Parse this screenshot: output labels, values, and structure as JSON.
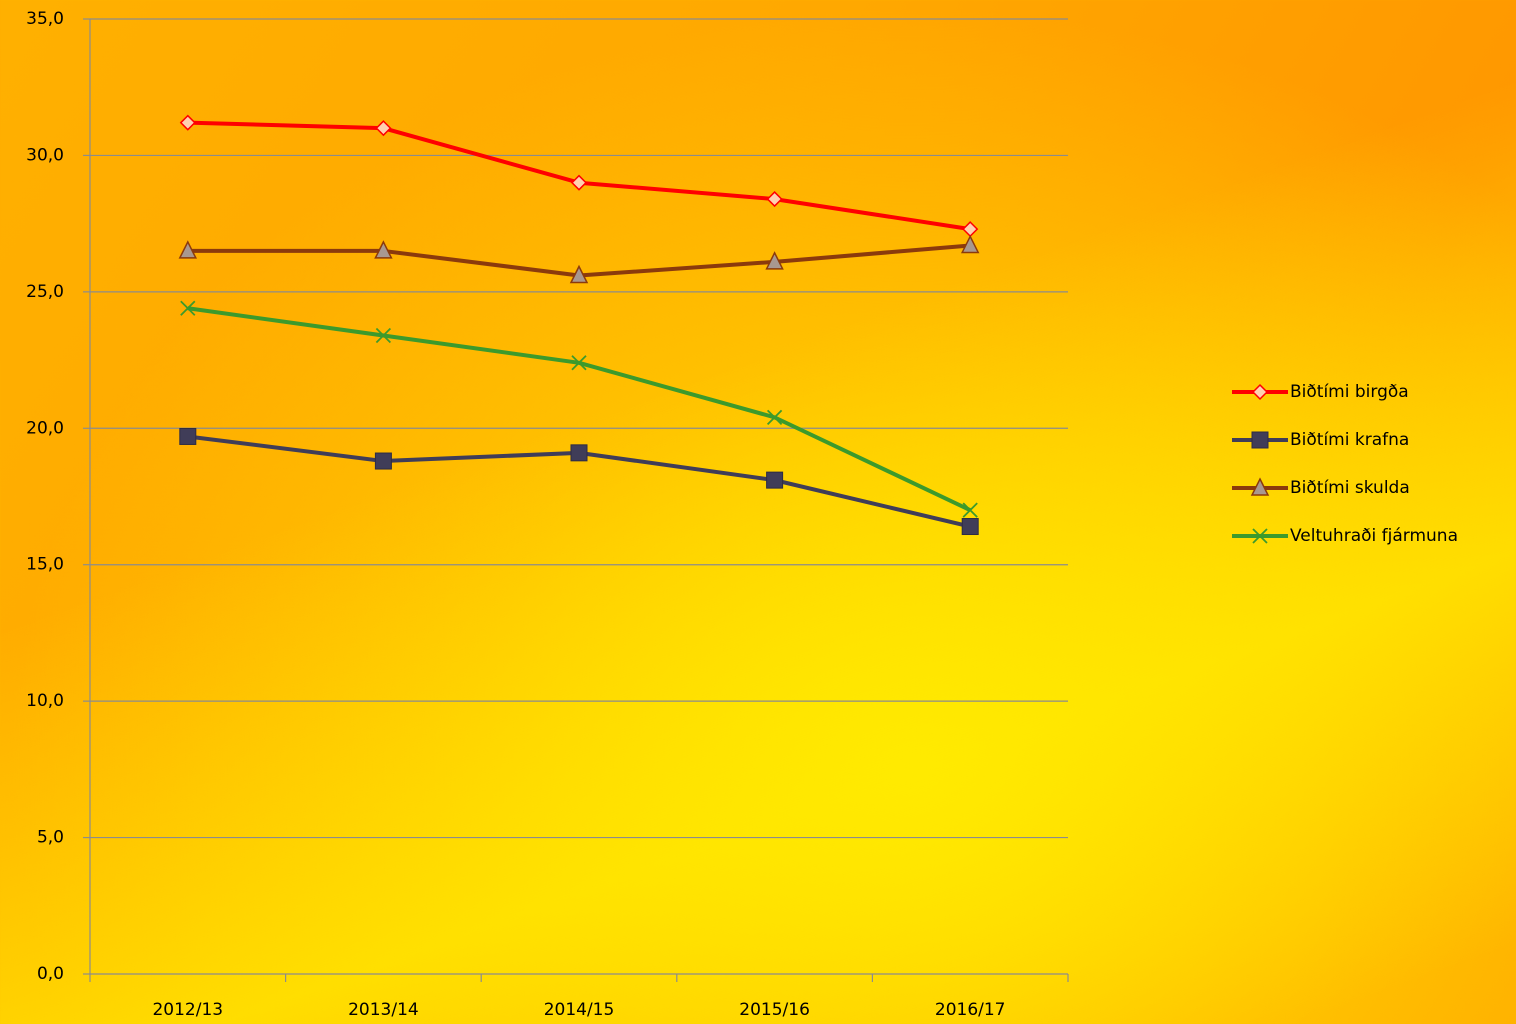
{
  "chart_data": {
    "type": "line",
    "categories": [
      "2012/13",
      "2013/14",
      "2014/15",
      "2015/16",
      "2016/17"
    ],
    "series": [
      {
        "name": "Biðtími birgða",
        "color": "#ff0000",
        "marker": "diamond",
        "values": [
          31.2,
          31.0,
          29.0,
          28.4,
          27.3
        ]
      },
      {
        "name": "Biðtími krafna",
        "color": "#403d58",
        "marker": "square",
        "values": [
          19.7,
          18.8,
          19.1,
          18.1,
          16.4
        ]
      },
      {
        "name": "Biðtími skulda",
        "color": "#8b3a0c",
        "marker": "triangle",
        "values": [
          26.5,
          26.5,
          25.6,
          26.1,
          26.7
        ]
      },
      {
        "name": "Veltuhraði fjármuna",
        "color": "#3c9a2c",
        "marker": "x",
        "values": [
          24.4,
          23.4,
          22.4,
          20.4,
          17.0
        ]
      }
    ],
    "ylim": [
      0,
      35
    ],
    "yticks": [
      {
        "value": 0,
        "label": "0,0"
      },
      {
        "value": 5,
        "label": "5,0"
      },
      {
        "value": 10,
        "label": "10,0"
      },
      {
        "value": 15,
        "label": "15,0"
      },
      {
        "value": 20,
        "label": "20,0"
      },
      {
        "value": 25,
        "label": "25,0"
      },
      {
        "value": 30,
        "label": "30,0"
      },
      {
        "value": 35,
        "label": "35,0"
      }
    ],
    "grid": true,
    "legend": "right"
  }
}
